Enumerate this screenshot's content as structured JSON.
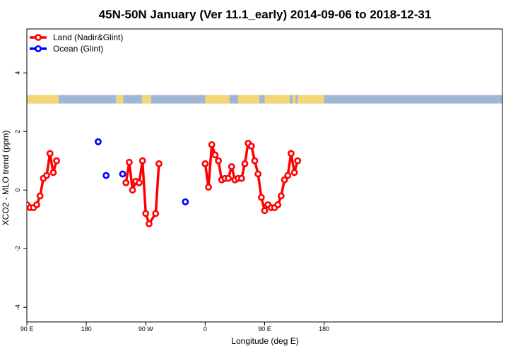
{
  "chart_data": {
    "type": "line",
    "title": "45N-50N January (Ver 11.1_early)   2014-09-06 to 2018-12-31",
    "xlabel": "Longitude (deg E)",
    "ylabel": "XCO2 - MLO trend (ppm)",
    "xlim": [
      90,
      450
    ],
    "ylim": [
      -4.5,
      5.5
    ],
    "x_ticks": [
      {
        "value": 90,
        "label": "90 E"
      },
      {
        "value": 180,
        "label": "180"
      },
      {
        "value": 270,
        "label": "90 W"
      },
      {
        "value": 360,
        "label": "0"
      },
      {
        "value": 450,
        "label": "90 E"
      },
      {
        "value": 540,
        "label": "180"
      }
    ],
    "y_ticks": [
      {
        "value": -4,
        "label": "-4"
      },
      {
        "value": -2,
        "label": "-2"
      },
      {
        "value": 0,
        "label": "0"
      },
      {
        "value": 2,
        "label": "2"
      },
      {
        "value": 4,
        "label": "4"
      }
    ],
    "legend_position": "top-left",
    "series": [
      {
        "name": "Land (Nadir&Glint)",
        "color": "#ff0000",
        "segments": [
          [
            [
              90,
              -0.5
            ],
            [
              95,
              -0.6
            ],
            [
              100,
              -0.6
            ],
            [
              105,
              -0.5
            ],
            [
              110,
              -0.2
            ],
            [
              115,
              0.4
            ],
            [
              120,
              0.5
            ],
            [
              125,
              1.25
            ],
            [
              130,
              0.6
            ],
            [
              135,
              1.0
            ]
          ],
          [
            [
              240,
              0.25
            ],
            [
              245,
              0.95
            ],
            [
              250,
              0.0
            ],
            [
              255,
              0.3
            ],
            [
              260,
              0.25
            ],
            [
              265,
              1.0
            ],
            [
              270,
              -0.8
            ],
            [
              275,
              -1.15
            ],
            [
              285,
              -0.8
            ],
            [
              290,
              0.9
            ]
          ],
          [
            [
              360,
              0.9
            ],
            [
              365,
              0.1
            ],
            [
              370,
              1.55
            ],
            [
              375,
              1.2
            ],
            [
              380,
              1.0
            ],
            [
              385,
              0.35
            ],
            [
              390,
              0.4
            ],
            [
              395,
              0.4
            ],
            [
              400,
              0.8
            ],
            [
              405,
              0.35
            ],
            [
              410,
              0.4
            ],
            [
              415,
              0.4
            ],
            [
              420,
              0.9
            ],
            [
              425,
              1.6
            ],
            [
              430,
              1.5
            ],
            [
              435,
              1.0
            ],
            [
              440,
              0.55
            ],
            [
              445,
              -0.25
            ],
            [
              450,
              -0.7
            ],
            [
              455,
              -0.5
            ],
            [
              460,
              -0.6
            ],
            [
              465,
              -0.6
            ],
            [
              470,
              -0.5
            ],
            [
              475,
              -0.2
            ],
            [
              480,
              0.35
            ],
            [
              485,
              0.5
            ],
            [
              490,
              1.25
            ],
            [
              495,
              0.6
            ],
            [
              500,
              1.0
            ]
          ]
        ]
      },
      {
        "name": "Ocean (Glint)",
        "color": "#0000ff",
        "points": [
          [
            198,
            1.65
          ],
          [
            210,
            0.5
          ],
          [
            235,
            0.55
          ],
          [
            330,
            -0.4
          ]
        ]
      }
    ],
    "land_ocean_strip": {
      "y_center": 3.1,
      "land_color": "#f3d67a",
      "ocean_color": "#9fb6d6",
      "land_ranges": [
        [
          90,
          138
        ],
        [
          225,
          236
        ],
        [
          264,
          278
        ],
        [
          360,
          397
        ],
        [
          410,
          442
        ],
        [
          450,
          488
        ],
        [
          492,
          497
        ],
        [
          500,
          540
        ]
      ]
    }
  }
}
